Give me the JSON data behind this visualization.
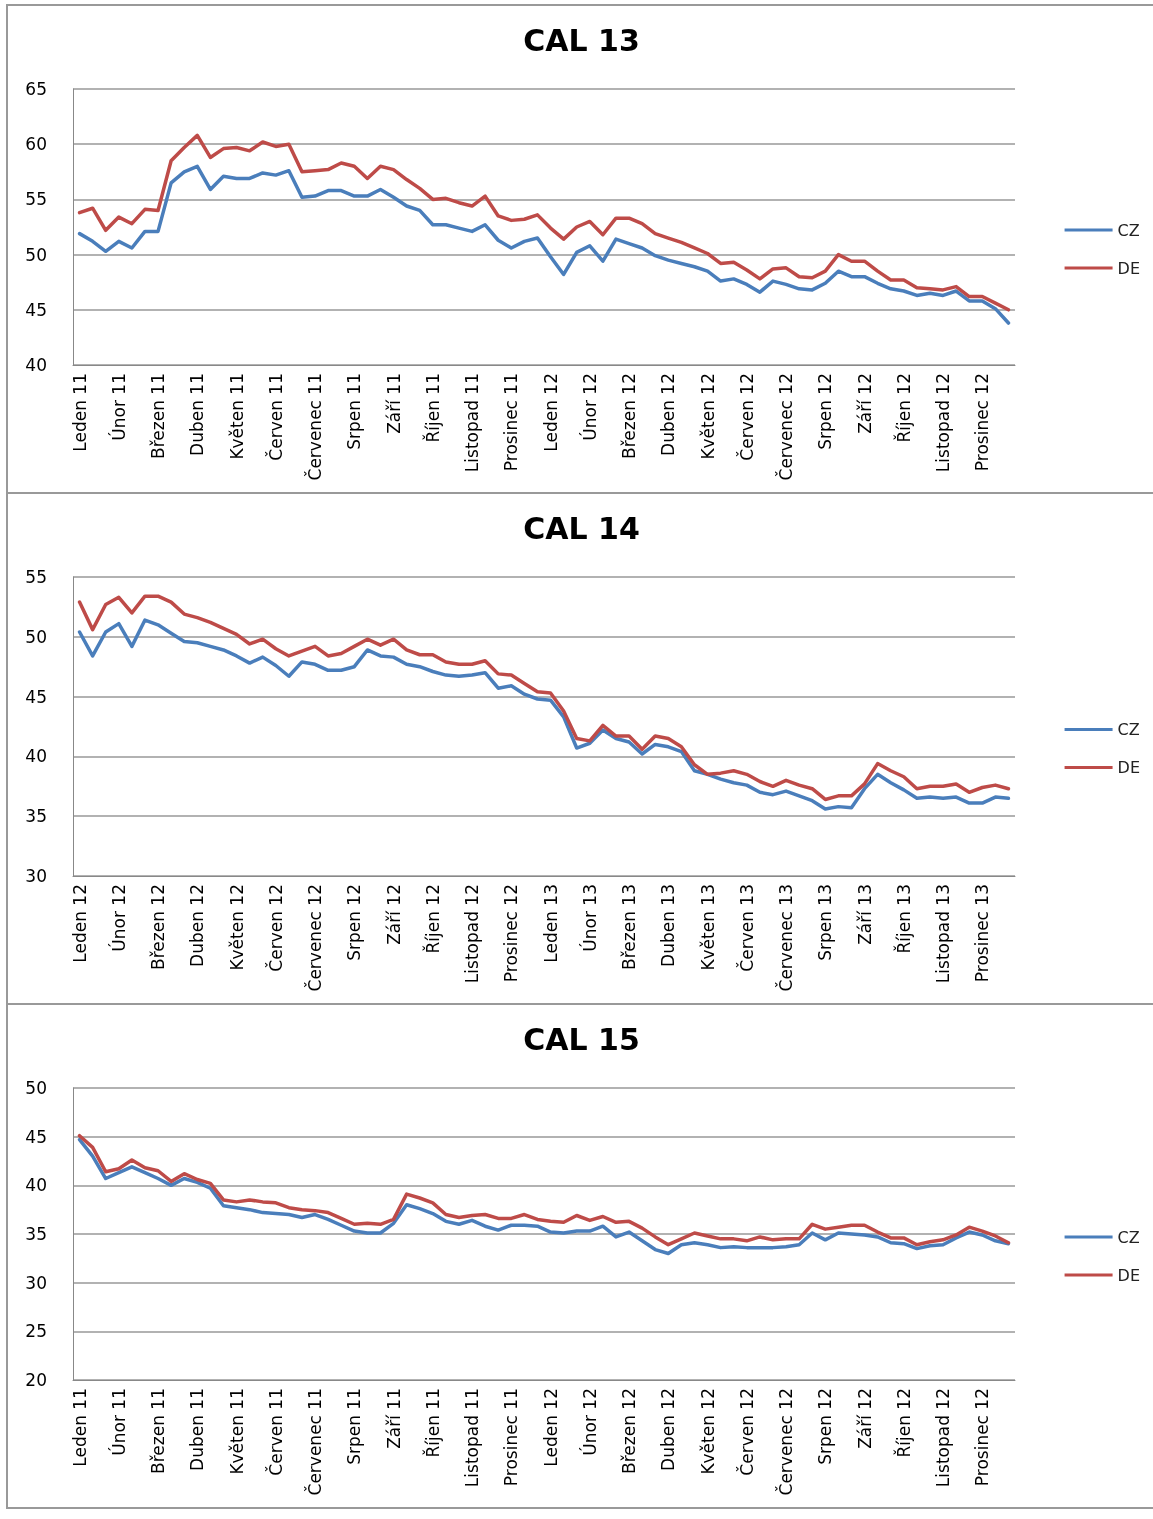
{
  "chart_data": [
    {
      "type": "line",
      "title": "CAL 13",
      "legend": "right",
      "grid": "y",
      "ylim": [
        40,
        65
      ],
      "yticks": [
        40,
        45,
        50,
        55,
        60,
        65
      ],
      "categories": [
        "Leden 11",
        null,
        null,
        "Únor 11",
        null,
        null,
        "Březen 11",
        null,
        null,
        "Duben 11",
        null,
        null,
        "Květen 11",
        null,
        null,
        "Červen 11",
        null,
        null,
        "Červenec 11",
        null,
        null,
        "Srpen 11",
        null,
        null,
        "Září 11",
        null,
        null,
        "Říjen 11",
        null,
        null,
        "Listopad 11",
        null,
        null,
        "Prosinec 11",
        null,
        null,
        "Leden 12",
        null,
        null,
        "Únor 12",
        null,
        null,
        "Březen 12",
        null,
        null,
        "Duben 12",
        null,
        null,
        "Květen 12",
        null,
        null,
        "Červen 12",
        null,
        null,
        "Červenec 12",
        null,
        null,
        "Srpen 12",
        null,
        null,
        "Září 12",
        null,
        null,
        "Říjen 12",
        null,
        null,
        "Listopad 12",
        null,
        null,
        "Prosinec 12",
        null,
        null
      ],
      "series": [
        {
          "name": "CZ",
          "color": "#4a7ebb",
          "values": [
            51.9,
            51.2,
            50.3,
            51.2,
            50.6,
            52.1,
            52.1,
            56.5,
            57.5,
            58.0,
            55.9,
            57.1,
            56.9,
            56.9,
            57.4,
            57.2,
            57.6,
            55.2,
            55.3,
            55.8,
            55.8,
            55.3,
            55.3,
            55.9,
            55.2,
            54.4,
            54.0,
            52.7,
            52.7,
            52.4,
            52.1,
            52.7,
            51.3,
            50.6,
            51.2,
            51.5,
            49.8,
            48.2,
            50.2,
            50.8,
            49.4,
            51.4,
            51.0,
            50.6,
            49.9,
            49.5,
            49.2,
            48.9,
            48.5,
            47.6,
            47.8,
            47.3,
            46.6,
            47.6,
            47.3,
            46.9,
            46.8,
            47.4,
            48.5,
            48.0,
            48.0,
            47.4,
            46.9,
            46.7,
            46.3,
            46.5,
            46.3,
            46.7,
            45.8,
            45.8,
            45.1,
            43.8
          ]
        },
        {
          "name": "DE",
          "color": "#be4b48",
          "values": [
            53.8,
            54.2,
            52.2,
            53.4,
            52.8,
            54.1,
            54.0,
            58.5,
            59.7,
            60.8,
            58.8,
            59.6,
            59.7,
            59.4,
            60.2,
            59.8,
            60.0,
            57.5,
            57.6,
            57.7,
            58.3,
            58.0,
            56.9,
            58.0,
            57.7,
            56.8,
            56.0,
            55.0,
            55.1,
            54.7,
            54.4,
            55.3,
            53.5,
            53.1,
            53.2,
            53.6,
            52.4,
            51.4,
            52.5,
            53.0,
            51.8,
            53.3,
            53.3,
            52.8,
            51.9,
            51.5,
            51.1,
            50.6,
            50.1,
            49.2,
            49.3,
            48.6,
            47.8,
            48.7,
            48.8,
            48.0,
            47.9,
            48.5,
            50.0,
            49.4,
            49.4,
            48.5,
            47.7,
            47.7,
            47.0,
            46.9,
            46.8,
            47.1,
            46.2,
            46.2,
            45.6,
            45.0
          ]
        }
      ]
    },
    {
      "type": "line",
      "title": "CAL 14",
      "legend": "right",
      "grid": "y",
      "ylim": [
        30,
        55
      ],
      "yticks": [
        30,
        35,
        40,
        45,
        50,
        55
      ],
      "categories": [
        "Leden 12",
        null,
        null,
        "Únor 12",
        null,
        null,
        "Březen 12",
        null,
        null,
        "Duben 12",
        null,
        null,
        "Květen 12",
        null,
        null,
        "Červen 12",
        null,
        null,
        "Červenec 12",
        null,
        null,
        "Srpen 12",
        null,
        null,
        "Září 12",
        null,
        null,
        "Říjen 12",
        null,
        null,
        "Listopad 12",
        null,
        null,
        "Prosinec 12",
        null,
        null,
        "Leden 13",
        null,
        null,
        "Únor 13",
        null,
        null,
        "Březen 13",
        null,
        null,
        "Duben 13",
        null,
        null,
        "Květen 13",
        null,
        null,
        "Červen 13",
        null,
        null,
        "Červenec 13",
        null,
        null,
        "Srpen 13",
        null,
        null,
        "Září 13",
        null,
        null,
        "Říjen 13",
        null,
        null,
        "Listopad 13",
        null,
        null,
        "Prosinec 13",
        null,
        null
      ],
      "series": [
        {
          "name": "CZ",
          "color": "#4a7ebb",
          "values": [
            50.4,
            48.4,
            50.4,
            51.1,
            49.2,
            51.4,
            51.0,
            50.3,
            49.6,
            49.5,
            49.2,
            48.9,
            48.4,
            47.8,
            48.3,
            47.6,
            46.7,
            47.9,
            47.7,
            47.2,
            47.2,
            47.5,
            48.9,
            48.4,
            48.3,
            47.7,
            47.5,
            47.1,
            46.8,
            46.7,
            46.8,
            47.0,
            45.7,
            45.9,
            45.2,
            44.8,
            44.7,
            43.3,
            40.7,
            41.1,
            42.2,
            41.5,
            41.2,
            40.2,
            41.0,
            40.8,
            40.4,
            38.8,
            38.5,
            38.1,
            37.8,
            37.6,
            37.0,
            36.8,
            37.1,
            36.7,
            36.3,
            35.6,
            35.8,
            35.7,
            37.3,
            38.5,
            37.8,
            37.2,
            36.5,
            36.6,
            36.5,
            36.6,
            36.1,
            36.1,
            36.6,
            36.5
          ]
        },
        {
          "name": "DE",
          "color": "#be4b48",
          "values": [
            52.9,
            50.6,
            52.7,
            53.3,
            52.0,
            53.4,
            53.4,
            52.9,
            51.9,
            51.6,
            51.2,
            50.7,
            50.2,
            49.4,
            49.8,
            49.0,
            48.4,
            48.8,
            49.2,
            48.4,
            48.6,
            49.2,
            49.8,
            49.3,
            49.8,
            48.9,
            48.5,
            48.5,
            47.9,
            47.7,
            47.7,
            48.0,
            46.9,
            46.8,
            46.1,
            45.4,
            45.3,
            43.8,
            41.5,
            41.3,
            42.6,
            41.7,
            41.7,
            40.6,
            41.7,
            41.5,
            40.8,
            39.3,
            38.5,
            38.6,
            38.8,
            38.5,
            37.9,
            37.5,
            38.0,
            37.6,
            37.3,
            36.4,
            36.7,
            36.7,
            37.7,
            39.4,
            38.8,
            38.3,
            37.3,
            37.5,
            37.5,
            37.7,
            37.0,
            37.4,
            37.6,
            37.3
          ]
        }
      ]
    },
    {
      "type": "line",
      "title": "CAL 15",
      "legend": "right",
      "grid": "y",
      "ylim": [
        20,
        50
      ],
      "yticks": [
        20,
        25,
        30,
        35,
        40,
        45,
        50
      ],
      "categories": [
        "Leden 11",
        null,
        null,
        "Únor 11",
        null,
        null,
        "Březen 11",
        null,
        null,
        "Duben 11",
        null,
        null,
        "Květen 11",
        null,
        null,
        "Červen 11",
        null,
        null,
        "Červenec 11",
        null,
        null,
        "Srpen 11",
        null,
        null,
        "Září 11",
        null,
        null,
        "Říjen 11",
        null,
        null,
        "Listopad 11",
        null,
        null,
        "Prosinec 11",
        null,
        null,
        "Leden 12",
        null,
        null,
        "Únor 12",
        null,
        null,
        "Březen 12",
        null,
        null,
        "Duben 12",
        null,
        null,
        "Květen 12",
        null,
        null,
        "Červen 12",
        null,
        null,
        "Červenec 12",
        null,
        null,
        "Srpen 12",
        null,
        null,
        "Září 12",
        null,
        null,
        "Říjen 12",
        null,
        null,
        "Listopad 12",
        null,
        null,
        "Prosinec 12",
        null,
        null
      ],
      "series": [
        {
          "name": "CZ",
          "color": "#4a7ebb",
          "values": [
            44.7,
            43.0,
            40.7,
            41.3,
            41.9,
            41.3,
            40.7,
            40.0,
            40.7,
            40.3,
            39.7,
            37.9,
            37.7,
            37.5,
            37.2,
            37.1,
            37.0,
            36.7,
            37.0,
            36.5,
            35.9,
            35.3,
            35.1,
            35.1,
            36.1,
            38.0,
            37.6,
            37.1,
            36.3,
            36.0,
            36.4,
            35.8,
            35.4,
            35.9,
            35.9,
            35.8,
            35.2,
            35.1,
            35.3,
            35.3,
            35.8,
            34.7,
            35.2,
            34.3,
            33.4,
            33.0,
            33.9,
            34.1,
            33.9,
            33.6,
            33.7,
            33.6,
            33.6,
            33.6,
            33.7,
            33.9,
            35.1,
            34.4,
            35.1,
            35.0,
            34.9,
            34.7,
            34.1,
            34.0,
            33.5,
            33.8,
            33.9,
            34.6,
            35.2,
            34.9,
            34.3,
            34.0
          ]
        },
        {
          "name": "DE",
          "color": "#be4b48",
          "values": [
            45.1,
            43.9,
            41.4,
            41.7,
            42.6,
            41.8,
            41.5,
            40.4,
            41.2,
            40.6,
            40.2,
            38.5,
            38.3,
            38.5,
            38.3,
            38.2,
            37.7,
            37.5,
            37.4,
            37.2,
            36.6,
            36.0,
            36.1,
            36.0,
            36.5,
            39.1,
            38.7,
            38.2,
            37.0,
            36.7,
            36.9,
            37.0,
            36.6,
            36.6,
            37.0,
            36.5,
            36.3,
            36.2,
            36.9,
            36.4,
            36.8,
            36.2,
            36.3,
            35.6,
            34.7,
            33.9,
            34.5,
            35.1,
            34.8,
            34.5,
            34.5,
            34.3,
            34.7,
            34.4,
            34.5,
            34.5,
            36.0,
            35.5,
            35.7,
            35.9,
            35.9,
            35.2,
            34.6,
            34.6,
            33.9,
            34.2,
            34.4,
            34.9,
            35.7,
            35.3,
            34.8,
            34.1
          ]
        }
      ]
    }
  ]
}
